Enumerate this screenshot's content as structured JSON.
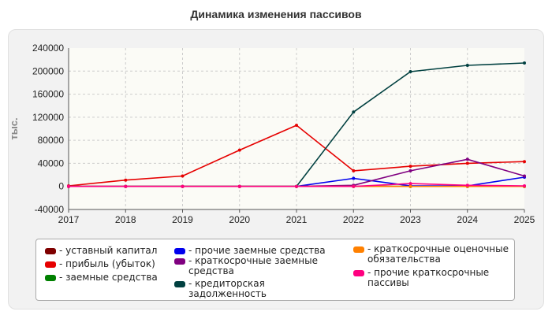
{
  "chart_data": {
    "type": "line",
    "title": "Динамика изменения пассивов",
    "ylabel": "тыс.",
    "xlabel": "",
    "x": [
      2017,
      2018,
      2019,
      2020,
      2021,
      2022,
      2023,
      2024,
      2025
    ],
    "ylim": [
      -40000,
      240000
    ],
    "yticks": [
      -40000,
      0,
      40000,
      80000,
      120000,
      160000,
      200000,
      240000
    ],
    "grid": true,
    "legend_position": "bottom",
    "series": [
      {
        "name": "уставный капитал",
        "color": "#7f0000",
        "values": [
          0,
          0,
          0,
          0,
          0,
          0,
          0,
          0,
          0
        ]
      },
      {
        "name": "прибыль (убыток)",
        "color": "#e60000",
        "values": [
          1000,
          11000,
          18000,
          63000,
          106000,
          27000,
          35000,
          40000,
          43000
        ]
      },
      {
        "name": "заемные средства",
        "color": "#008000",
        "values": [
          0,
          0,
          0,
          0,
          0,
          0,
          0,
          0,
          0
        ]
      },
      {
        "name": "прочие заемные средства",
        "color": "#0000ee",
        "values": [
          0,
          0,
          0,
          0,
          0,
          14000,
          1000,
          1000,
          16000
        ]
      },
      {
        "name": "краткосрочные заемные средства",
        "color": "#800080",
        "values": [
          0,
          0,
          0,
          0,
          0,
          2000,
          27000,
          47000,
          18000
        ]
      },
      {
        "name": "кредиторская задолженность",
        "color": "#004040",
        "values": [
          null,
          null,
          null,
          null,
          0,
          129000,
          199000,
          210000,
          214000
        ]
      },
      {
        "name": "краткосрочные оценочные обязательства",
        "color": "#ff8000",
        "values": [
          0,
          0,
          0,
          0,
          0,
          0,
          0,
          0,
          0
        ]
      },
      {
        "name": "прочие краткосрочные пассивы",
        "color": "#ff0080",
        "values": [
          0,
          0,
          0,
          0,
          0,
          0,
          5000,
          2000,
          1000
        ]
      }
    ]
  }
}
